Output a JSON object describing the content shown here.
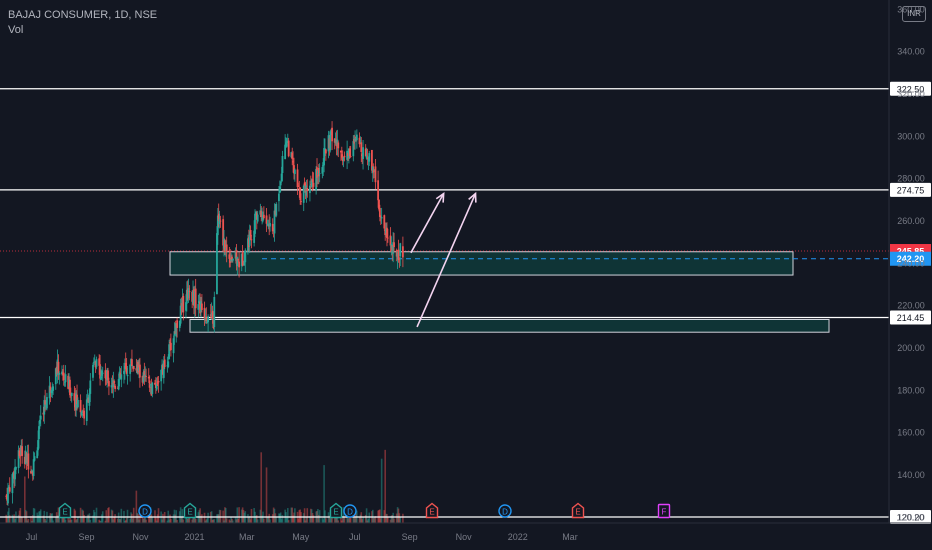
{
  "header": {
    "symbol_line": "BAJAJ CONSUMER, 1D, NSE",
    "volume_label": "Vol"
  },
  "currency_badge": "INR",
  "colors": {
    "background": "#131722",
    "up": "#26a69a",
    "down": "#ef5350",
    "grid_text": "#787b86",
    "level_line": "#ffffff",
    "zone_fill": "#0f3a3a",
    "zone_border": "#d1d4dc",
    "arrow": "#f3d4f0",
    "current_price_badge": "#f23645",
    "reference_price_badge": "#2196f3",
    "earnings_marker": "#26a69a",
    "dividend_marker": "#2196f3",
    "earnings_red_marker": "#ef5350",
    "future_marker": "#e040fb"
  },
  "chart_data": {
    "type": "candlestick",
    "title": "BAJAJ CONSUMER, 1D, NSE",
    "y_axis": {
      "ticks": [
        120,
        140,
        160,
        180,
        200,
        220,
        240,
        260,
        280,
        300,
        320,
        340,
        360
      ],
      "range": [
        115,
        360
      ]
    },
    "x_axis": {
      "ticks": [
        "Jul",
        "Sep",
        "Nov",
        "2021",
        "Mar",
        "May",
        "Jul",
        "Sep",
        "Nov",
        "2022",
        "Mar"
      ]
    },
    "horizontal_levels": [
      {
        "value": 322.5,
        "label": "322.50"
      },
      {
        "value": 274.75,
        "label": "274.75"
      },
      {
        "value": 214.45,
        "label": "214.45"
      },
      {
        "value": 120.2,
        "label": "120.20"
      }
    ],
    "zones": [
      {
        "name": "upper-support-zone",
        "top": 245.5,
        "bottom": 234.5
      },
      {
        "name": "lower-support-zone",
        "top": 213.5,
        "bottom": 207.5
      }
    ],
    "price_labels": [
      {
        "value": 245.85,
        "label": "245.85",
        "kind": "current"
      },
      {
        "value": 242.2,
        "label": "242.20",
        "kind": "reference"
      }
    ],
    "annotation_arrows": [
      {
        "from": {
          "date": "2021-09-08",
          "price": 245
        },
        "to": {
          "date": "2021-10-15",
          "price": 273
        }
      },
      {
        "from": {
          "date": "2021-09-15",
          "price": 210
        },
        "to": {
          "date": "2021-11-20",
          "price": 273
        }
      }
    ],
    "event_markers": [
      {
        "label": "E",
        "kind": "earnings"
      },
      {
        "label": "D",
        "kind": "dividend"
      },
      {
        "label": "E",
        "kind": "earnings"
      },
      {
        "label": "E",
        "kind": "earnings"
      },
      {
        "label": "D",
        "kind": "dividend"
      },
      {
        "label": "E",
        "kind": "earnings-red"
      },
      {
        "label": "D",
        "kind": "dividend"
      },
      {
        "label": "E",
        "kind": "earnings-red"
      },
      {
        "label": "F",
        "kind": "future"
      }
    ],
    "price_path_anchors": [
      {
        "date": "2020-06-08",
        "price": 130
      },
      {
        "date": "2020-06-25",
        "price": 152
      },
      {
        "date": "2020-07-08",
        "price": 143
      },
      {
        "date": "2020-07-20",
        "price": 172
      },
      {
        "date": "2020-08-05",
        "price": 191
      },
      {
        "date": "2020-08-25",
        "price": 176
      },
      {
        "date": "2020-09-05",
        "price": 168
      },
      {
        "date": "2020-09-15",
        "price": 192
      },
      {
        "date": "2020-10-10",
        "price": 183
      },
      {
        "date": "2020-10-28",
        "price": 193
      },
      {
        "date": "2020-11-20",
        "price": 180
      },
      {
        "date": "2020-12-05",
        "price": 192
      },
      {
        "date": "2020-12-18",
        "price": 212
      },
      {
        "date": "2020-12-31",
        "price": 228
      },
      {
        "date": "2021-01-15",
        "price": 218
      },
      {
        "date": "2021-01-28",
        "price": 212
      },
      {
        "date": "2021-02-02",
        "price": 262
      },
      {
        "date": "2021-02-12",
        "price": 245
      },
      {
        "date": "2021-02-28",
        "price": 240
      },
      {
        "date": "2021-03-20",
        "price": 265
      },
      {
        "date": "2021-04-05",
        "price": 255
      },
      {
        "date": "2021-04-20",
        "price": 300
      },
      {
        "date": "2021-05-05",
        "price": 272
      },
      {
        "date": "2021-05-25",
        "price": 282
      },
      {
        "date": "2021-06-10",
        "price": 300
      },
      {
        "date": "2021-06-25",
        "price": 290
      },
      {
        "date": "2021-07-10",
        "price": 298
      },
      {
        "date": "2021-07-28",
        "price": 286
      },
      {
        "date": "2021-08-05",
        "price": 262
      },
      {
        "date": "2021-08-20",
        "price": 245
      },
      {
        "date": "2021-08-30",
        "price": 246
      }
    ]
  }
}
